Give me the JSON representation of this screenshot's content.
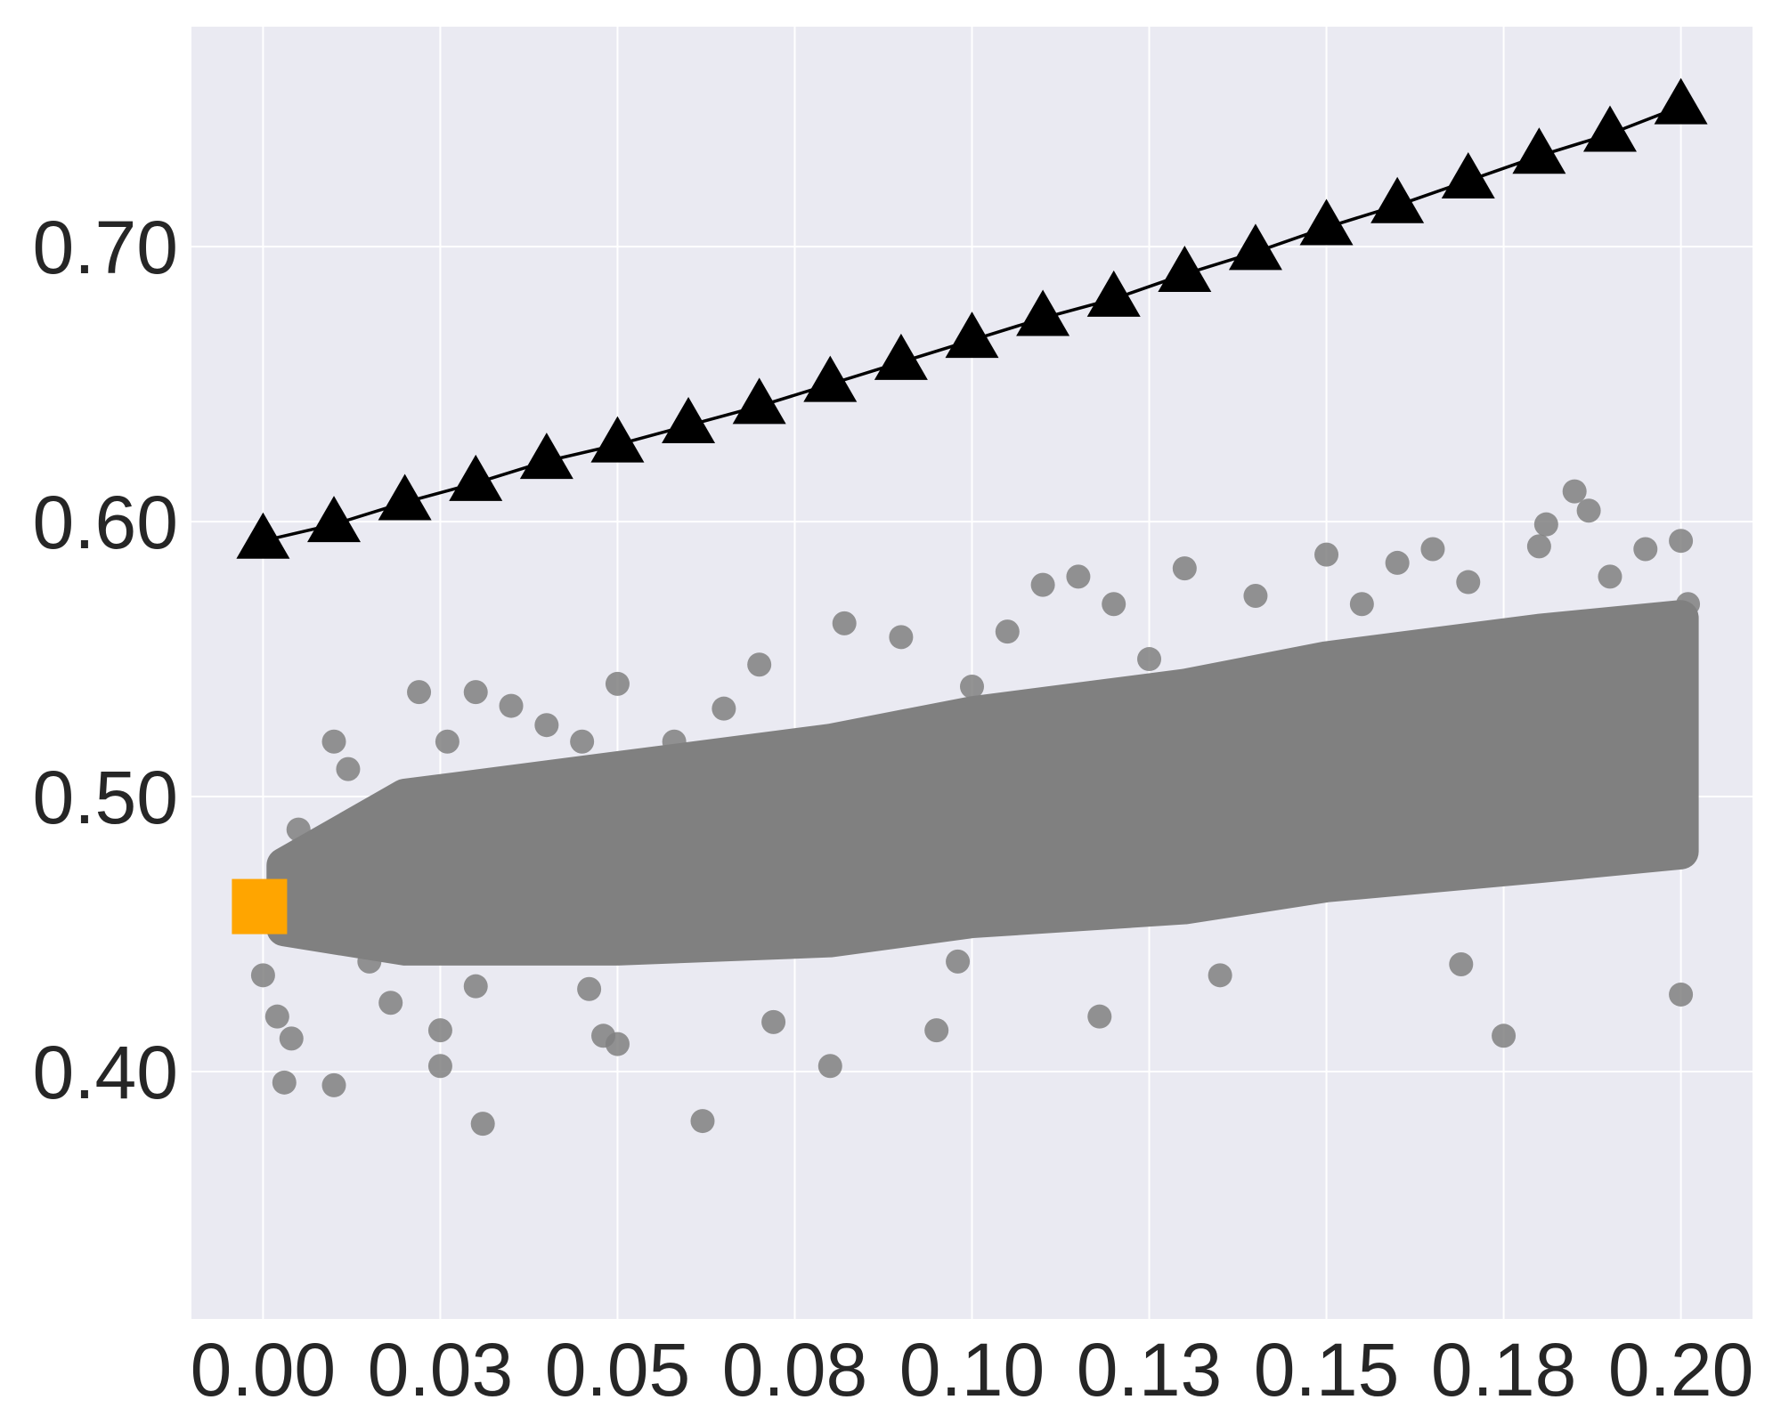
{
  "chart_data": {
    "type": "scatter",
    "title": "",
    "xlabel": "",
    "ylabel": "",
    "xlim": [
      -0.0101,
      0.2101
    ],
    "ylim": [
      0.31,
      0.78
    ],
    "grid": true,
    "legend": "none",
    "colors": {
      "background": "#eaeaf2",
      "grid": "#ffffff",
      "scatter": "#808080",
      "line": "#000000",
      "marker": "#000000",
      "square": "#ffa500",
      "tick_text": "#262626"
    },
    "x_ticks": [
      {
        "value": 0.0,
        "label": "0.00"
      },
      {
        "value": 0.025,
        "label": "0.03"
      },
      {
        "value": 0.05,
        "label": "0.05"
      },
      {
        "value": 0.075,
        "label": "0.08"
      },
      {
        "value": 0.1,
        "label": "0.10"
      },
      {
        "value": 0.125,
        "label": "0.13"
      },
      {
        "value": 0.15,
        "label": "0.15"
      },
      {
        "value": 0.175,
        "label": "0.18"
      },
      {
        "value": 0.2,
        "label": "0.20"
      }
    ],
    "y_ticks": [
      {
        "value": 0.4,
        "label": "0.40"
      },
      {
        "value": 0.5,
        "label": "0.50"
      },
      {
        "value": 0.6,
        "label": "0.60"
      },
      {
        "value": 0.7,
        "label": "0.70"
      }
    ],
    "triangle_series": {
      "marker": "triangle",
      "x": [
        0.0,
        0.01,
        0.02,
        0.03,
        0.04,
        0.05,
        0.06,
        0.07,
        0.08,
        0.09,
        0.1,
        0.11,
        0.12,
        0.13,
        0.14,
        0.15,
        0.16,
        0.17,
        0.18,
        0.19,
        0.2
      ],
      "y": [
        0.593,
        0.599,
        0.607,
        0.614,
        0.622,
        0.628,
        0.635,
        0.642,
        0.65,
        0.658,
        0.666,
        0.674,
        0.681,
        0.69,
        0.698,
        0.707,
        0.715,
        0.724,
        0.733,
        0.741,
        0.751
      ]
    },
    "square_marker": {
      "x": 0.0,
      "y": 0.46
    },
    "scatter_series": {
      "marker": "circle",
      "x": [
        0.0,
        0.0,
        0.002,
        0.003,
        0.004,
        0.005,
        0.006,
        0.008,
        0.01,
        0.01,
        0.012,
        0.015,
        0.018,
        0.02,
        0.022,
        0.025,
        0.025,
        0.026,
        0.028,
        0.03,
        0.03,
        0.031,
        0.035,
        0.04,
        0.045,
        0.048,
        0.05,
        0.05,
        0.055,
        0.058,
        0.065,
        0.07,
        0.072,
        0.08,
        0.082,
        0.085,
        0.09,
        0.095,
        0.1,
        0.105,
        0.11,
        0.115,
        0.12,
        0.125,
        0.13,
        0.135,
        0.14,
        0.15,
        0.155,
        0.16,
        0.165,
        0.17,
        0.175,
        0.18,
        0.185,
        0.19,
        0.195,
        0.2,
        0.2,
        0.201,
        0.181,
        0.187,
        0.169,
        0.014,
        0.062,
        0.046,
        0.118,
        0.098
      ],
      "y": [
        0.459,
        0.435,
        0.42,
        0.396,
        0.412,
        0.488,
        0.47,
        0.451,
        0.395,
        0.52,
        0.51,
        0.44,
        0.425,
        0.443,
        0.538,
        0.415,
        0.402,
        0.52,
        0.48,
        0.431,
        0.538,
        0.381,
        0.533,
        0.526,
        0.52,
        0.413,
        0.541,
        0.41,
        0.49,
        0.52,
        0.532,
        0.548,
        0.418,
        0.402,
        0.563,
        0.46,
        0.558,
        0.415,
        0.54,
        0.56,
        0.577,
        0.58,
        0.57,
        0.55,
        0.583,
        0.435,
        0.573,
        0.588,
        0.57,
        0.585,
        0.59,
        0.578,
        0.413,
        0.591,
        0.611,
        0.58,
        0.59,
        0.593,
        0.428,
        0.57,
        0.599,
        0.604,
        0.439,
        0.46,
        0.382,
        0.43,
        0.42,
        0.44
      ]
    }
  }
}
